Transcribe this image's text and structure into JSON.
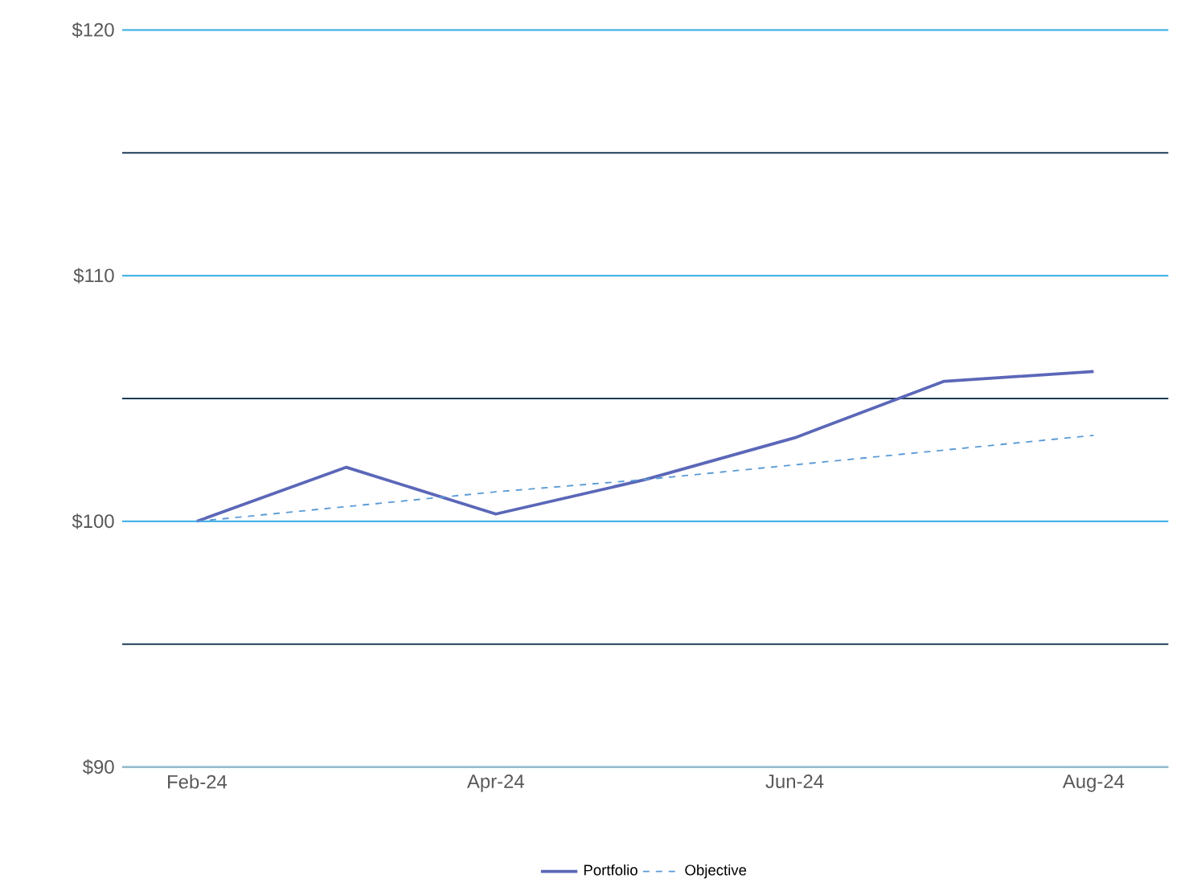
{
  "chart_data": {
    "type": "line",
    "categories": [
      "Feb-24",
      null,
      "Apr-24",
      null,
      "Jun-24",
      null,
      "Aug-24"
    ],
    "series": [
      {
        "name": "Portfolio",
        "color": "#5b67b8",
        "values": [
          100,
          102.2,
          100.3,
          101.7,
          103.4,
          105.7,
          106.1
        ],
        "line_style": "solid"
      },
      {
        "name": "Objective",
        "color": "#5b9bd5",
        "values": [
          100,
          100.6,
          101.2,
          101.7,
          102.3,
          102.9,
          103.5
        ],
        "line_style": "dashed"
      }
    ],
    "ylim": [
      90,
      120
    ],
    "yticks": [
      {
        "value": 90,
        "label": "$90"
      },
      {
        "value": 95,
        "label": null
      },
      {
        "value": 100,
        "label": "$100"
      },
      {
        "value": 105,
        "label": null
      },
      {
        "value": 110,
        "label": "$110"
      },
      {
        "value": 115,
        "label": null
      },
      {
        "value": 120,
        "label": "$120"
      }
    ],
    "grid": "y",
    "legend": "bottom",
    "marker": "none"
  }
}
